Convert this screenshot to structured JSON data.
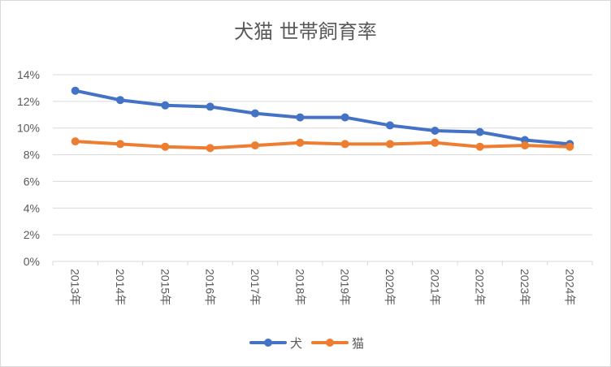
{
  "chart_data": {
    "type": "line",
    "title": "犬猫 世帯飼育率",
    "xlabel": "",
    "ylabel": "",
    "categories": [
      "2013年",
      "2014年",
      "2015年",
      "2016年",
      "2017年",
      "2018年",
      "2019年",
      "2020年",
      "2021年",
      "2022年",
      "2023年",
      "2024年"
    ],
    "y_ticks": [
      "0%",
      "2%",
      "4%",
      "6%",
      "8%",
      "10%",
      "12%",
      "14%"
    ],
    "ylim": [
      0,
      14
    ],
    "grid": true,
    "legend_position": "bottom",
    "series": [
      {
        "name": "犬",
        "color": "#4472c4",
        "values": [
          12.8,
          12.1,
          11.7,
          11.6,
          11.1,
          10.8,
          10.8,
          10.2,
          9.8,
          9.7,
          9.1,
          8.8
        ]
      },
      {
        "name": "猫",
        "color": "#ed7d31",
        "values": [
          9.0,
          8.8,
          8.6,
          8.5,
          8.7,
          8.9,
          8.8,
          8.8,
          8.9,
          8.6,
          8.7,
          8.6
        ]
      }
    ]
  }
}
